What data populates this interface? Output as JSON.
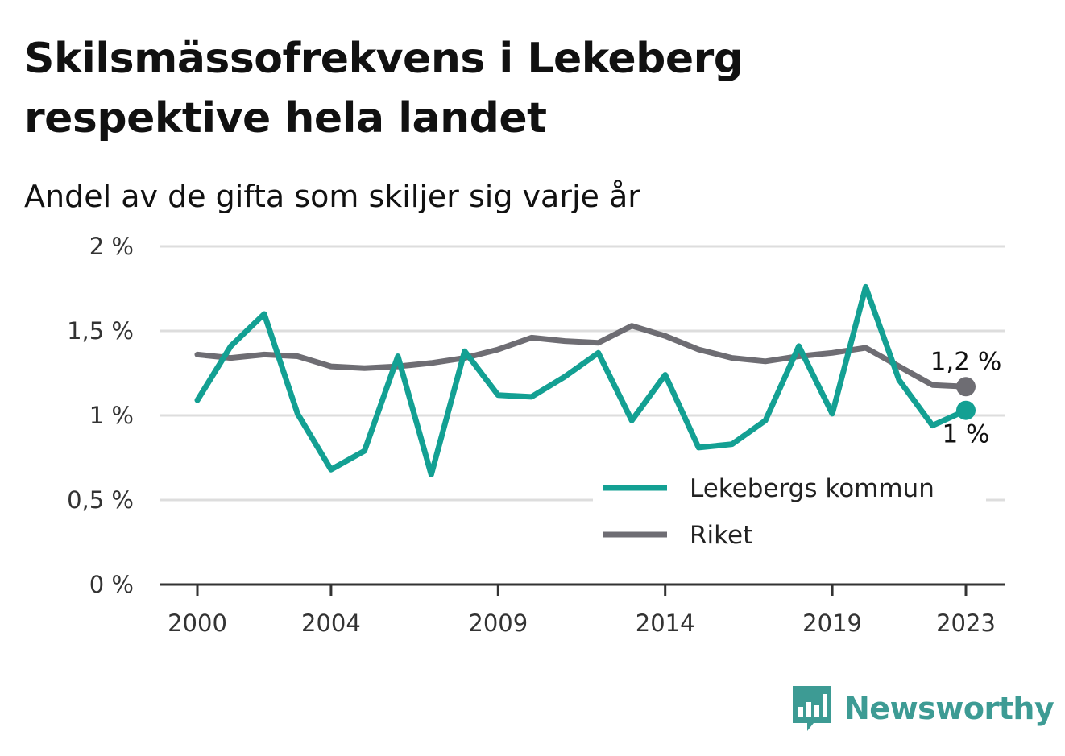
{
  "title": "Skilsmässofrekvens i Lekeberg respektive hela landet",
  "subtitle": "Andel av de gifta som skiljer sig varje år",
  "brand": "Newsworthy",
  "colors": {
    "lekeberg": "#13a093",
    "riket": "#6e6d73",
    "grid": "#dddddd",
    "axis": "#333333",
    "brand": "#3d9b94"
  },
  "chart_data": {
    "type": "line",
    "x": [
      2000,
      2001,
      2002,
      2003,
      2004,
      2005,
      2006,
      2007,
      2008,
      2009,
      2010,
      2011,
      2012,
      2013,
      2014,
      2015,
      2016,
      2017,
      2018,
      2019,
      2020,
      2021,
      2022,
      2023
    ],
    "x_ticks": [
      2000,
      2004,
      2009,
      2014,
      2019,
      2023
    ],
    "x_tick_labels": [
      "2000",
      "2004",
      "2009",
      "2014",
      "2019",
      "2023"
    ],
    "xlim": [
      2000,
      2023
    ],
    "ylim": [
      0,
      2
    ],
    "y_ticks": [
      0,
      0.5,
      1,
      1.5,
      2
    ],
    "y_tick_labels": [
      "0 %",
      "0,5 %",
      "1 %",
      "1,5 %",
      "2 %"
    ],
    "grid": true,
    "legend_position": "bottom-right",
    "series": [
      {
        "name": "Lekebergs kommun",
        "key": "lekeberg",
        "values": [
          1.09,
          1.41,
          1.6,
          1.01,
          0.68,
          0.79,
          1.35,
          0.65,
          1.38,
          1.12,
          1.11,
          1.23,
          1.37,
          0.97,
          1.24,
          0.81,
          0.83,
          0.97,
          1.41,
          1.01,
          1.76,
          1.21,
          0.94,
          1.03
        ],
        "end_label": "1 %"
      },
      {
        "name": "Riket",
        "key": "riket",
        "values": [
          1.36,
          1.34,
          1.36,
          1.35,
          1.29,
          1.28,
          1.29,
          1.31,
          1.34,
          1.39,
          1.46,
          1.44,
          1.43,
          1.53,
          1.47,
          1.39,
          1.34,
          1.32,
          1.35,
          1.37,
          1.4,
          1.29,
          1.18,
          1.17
        ],
        "end_label": "1,2 %"
      }
    ]
  }
}
